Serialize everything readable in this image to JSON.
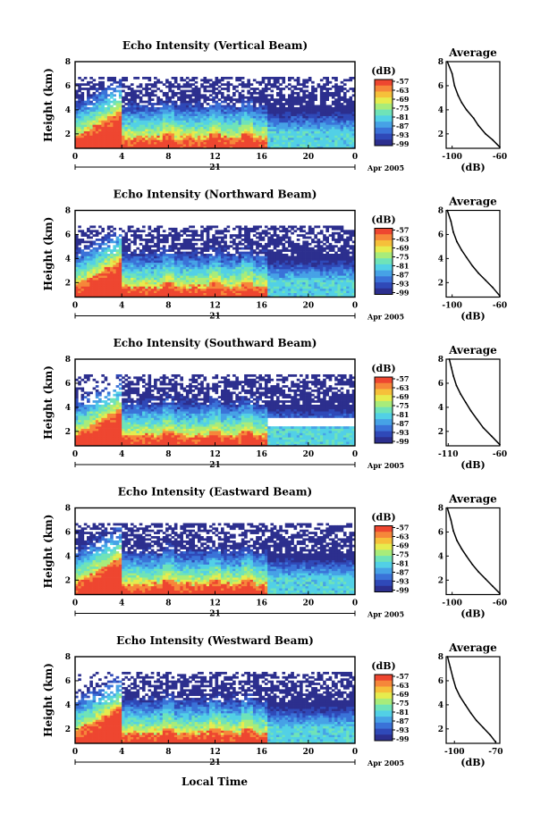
{
  "figure": {
    "xlabel": "Local Time",
    "date_label": "Apr 2005",
    "day_label": "21",
    "ylabel": "Height (km)",
    "colorbar_unit": "(dB)",
    "colorbar_ticks": [
      "-57",
      "-63",
      "-69",
      "-75",
      "-81",
      "-87",
      "-93",
      "-99"
    ],
    "avg_title": "Average",
    "avg_xlabel": "(dB)",
    "colormap": [
      "#2c2f8e",
      "#2f49b8",
      "#3a72d8",
      "#46a2e6",
      "#52d0e6",
      "#6fe3b8",
      "#a8ec7a",
      "#e6ec4e",
      "#f6c03a",
      "#f6873a",
      "#ee4630"
    ]
  },
  "chart_data": [
    {
      "type": "heatmap",
      "title": "Echo Intensity (Vertical Beam)",
      "xlabel": "Local Time",
      "ylabel": "Height (km)",
      "x_ticks": [
        "0",
        "4",
        "8",
        "12",
        "16",
        "20",
        "0"
      ],
      "xlim": [
        0,
        24
      ],
      "y_ticks": [
        "8",
        "6",
        "4",
        "2"
      ],
      "ylim": [
        0.8,
        8
      ],
      "colorbar": {
        "unit": "(dB)",
        "ticks": [
          -57,
          -63,
          -69,
          -75,
          -81,
          -87,
          -93,
          -99
        ]
      },
      "profile": [
        {
          "x": -60,
          "y": 0.9
        },
        {
          "x": -66,
          "y": 1.5
        },
        {
          "x": -72,
          "y": 2.0
        },
        {
          "x": -78,
          "y": 2.7
        },
        {
          "x": -82,
          "y": 3.3
        },
        {
          "x": -88,
          "y": 4.0
        },
        {
          "x": -92,
          "y": 4.6
        },
        {
          "x": -95,
          "y": 5.2
        },
        {
          "x": -98,
          "y": 6.0
        },
        {
          "x": -100,
          "y": 7.0
        },
        {
          "x": -104,
          "y": 8.0
        }
      ],
      "profile_ticks": [
        "-100",
        "-60"
      ],
      "profile_xlim": [
        -105,
        -60
      ],
      "profile_yticks": [
        "8",
        "6",
        "4",
        "2"
      ]
    },
    {
      "type": "heatmap",
      "title": "Echo Intensity (Northward Beam)",
      "xlabel": "Local Time",
      "ylabel": "Height (km)",
      "x_ticks": [
        "0",
        "4",
        "8",
        "12",
        "16",
        "20",
        "0"
      ],
      "xlim": [
        0,
        24
      ],
      "y_ticks": [
        "8",
        "6",
        "4",
        "2"
      ],
      "ylim": [
        0.8,
        8
      ],
      "colorbar": {
        "unit": "(dB)",
        "ticks": [
          -57,
          -63,
          -69,
          -75,
          -81,
          -87,
          -93,
          -99
        ]
      },
      "profile": [
        {
          "x": -60,
          "y": 0.9
        },
        {
          "x": -66,
          "y": 1.6
        },
        {
          "x": -72,
          "y": 2.2
        },
        {
          "x": -78,
          "y": 2.8
        },
        {
          "x": -83,
          "y": 3.4
        },
        {
          "x": -88,
          "y": 4.1
        },
        {
          "x": -92,
          "y": 4.7
        },
        {
          "x": -96,
          "y": 5.4
        },
        {
          "x": -99,
          "y": 6.2
        },
        {
          "x": -101,
          "y": 7.1
        },
        {
          "x": -104,
          "y": 8.0
        }
      ],
      "profile_ticks": [
        "-100",
        "-60"
      ],
      "profile_xlim": [
        -105,
        -60
      ],
      "profile_yticks": [
        "8",
        "6",
        "4",
        "2"
      ]
    },
    {
      "type": "heatmap",
      "title": "Echo Intensity (Southward Beam)",
      "xlabel": "Local Time",
      "ylabel": "Height (km)",
      "x_ticks": [
        "0",
        "4",
        "8",
        "12",
        "16",
        "20",
        "0"
      ],
      "xlim": [
        0,
        24
      ],
      "y_ticks": [
        "8",
        "6",
        "4",
        "2"
      ],
      "ylim": [
        0.8,
        8
      ],
      "colorbar": {
        "unit": "(dB)",
        "ticks": [
          -57,
          -63,
          -69,
          -75,
          -81,
          -87,
          -93,
          -99
        ]
      },
      "profile": [
        {
          "x": -60,
          "y": 0.9
        },
        {
          "x": -68,
          "y": 1.6
        },
        {
          "x": -76,
          "y": 2.3
        },
        {
          "x": -82,
          "y": 3.0
        },
        {
          "x": -88,
          "y": 3.7
        },
        {
          "x": -93,
          "y": 4.4
        },
        {
          "x": -98,
          "y": 5.1
        },
        {
          "x": -102,
          "y": 5.8
        },
        {
          "x": -105,
          "y": 6.6
        },
        {
          "x": -107,
          "y": 7.3
        },
        {
          "x": -109,
          "y": 8.0
        }
      ],
      "profile_ticks": [
        "-110",
        "-60"
      ],
      "profile_xlim": [
        -112,
        -60
      ],
      "profile_yticks": [
        "8",
        "6",
        "4",
        "2"
      ]
    },
    {
      "type": "heatmap",
      "title": "Echo Intensity (Eastward Beam)",
      "xlabel": "Local Time",
      "ylabel": "Height (km)",
      "x_ticks": [
        "0",
        "4",
        "8",
        "12",
        "16",
        "20",
        "0"
      ],
      "xlim": [
        0,
        24
      ],
      "y_ticks": [
        "8",
        "6",
        "4",
        "2"
      ],
      "ylim": [
        0.8,
        8
      ],
      "colorbar": {
        "unit": "(dB)",
        "ticks": [
          -57,
          -63,
          -69,
          -75,
          -81,
          -87,
          -93,
          -99
        ]
      },
      "profile": [
        {
          "x": -60,
          "y": 0.9
        },
        {
          "x": -66,
          "y": 1.5
        },
        {
          "x": -72,
          "y": 2.1
        },
        {
          "x": -78,
          "y": 2.7
        },
        {
          "x": -83,
          "y": 3.3
        },
        {
          "x": -88,
          "y": 4.0
        },
        {
          "x": -92,
          "y": 4.6
        },
        {
          "x": -96,
          "y": 5.3
        },
        {
          "x": -99,
          "y": 6.1
        },
        {
          "x": -101,
          "y": 7.0
        },
        {
          "x": -104,
          "y": 8.0
        }
      ],
      "profile_ticks": [
        "-100",
        "-60"
      ],
      "profile_xlim": [
        -105,
        -60
      ],
      "profile_yticks": [
        "8",
        "6",
        "4",
        "2"
      ]
    },
    {
      "type": "heatmap",
      "title": "Echo Intensity (Westward Beam)",
      "xlabel": "Local Time",
      "ylabel": "Height (km)",
      "x_ticks": [
        "0",
        "4",
        "8",
        "12",
        "16",
        "20",
        "0"
      ],
      "xlim": [
        0,
        24
      ],
      "y_ticks": [
        "8",
        "6",
        "4",
        "2"
      ],
      "ylim": [
        0.8,
        8
      ],
      "colorbar": {
        "unit": "(dB)",
        "ticks": [
          -57,
          -63,
          -69,
          -75,
          -81,
          -87,
          -93,
          -99
        ]
      },
      "profile": [
        {
          "x": -70,
          "y": 0.9
        },
        {
          "x": -74,
          "y": 1.5
        },
        {
          "x": -79,
          "y": 2.1
        },
        {
          "x": -84,
          "y": 2.7
        },
        {
          "x": -88,
          "y": 3.3
        },
        {
          "x": -92,
          "y": 4.0
        },
        {
          "x": -96,
          "y": 4.7
        },
        {
          "x": -99,
          "y": 5.4
        },
        {
          "x": -101,
          "y": 6.2
        },
        {
          "x": -103,
          "y": 7.1
        },
        {
          "x": -105,
          "y": 8.0
        }
      ],
      "profile_ticks": [
        "-100",
        "-70"
      ],
      "profile_xlim": [
        -106,
        -67
      ],
      "profile_yticks": [
        "8",
        "6",
        "4",
        "2"
      ]
    }
  ]
}
